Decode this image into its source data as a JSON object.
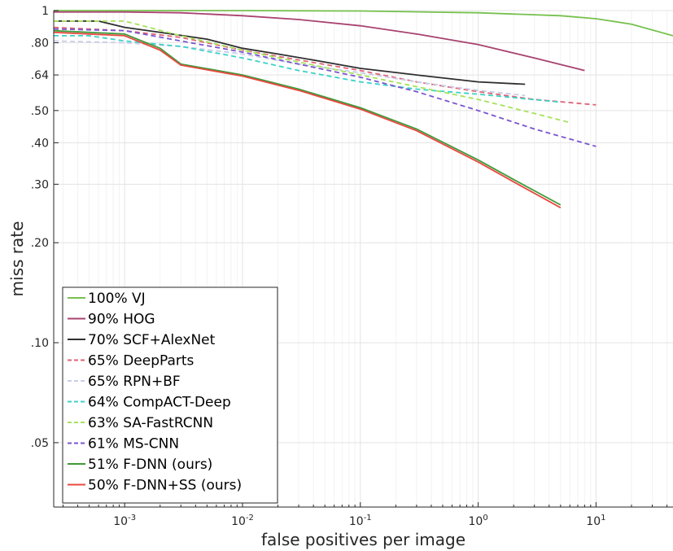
{
  "chart_data": {
    "type": "line",
    "xlabel": "false positives per image",
    "ylabel": "miss rate",
    "x_scale": "log",
    "y_scale": "log",
    "xlim": [
      0.00025,
      45
    ],
    "ylim": [
      0.032,
      1
    ],
    "grid": true,
    "legend_position": "bottom-left",
    "x_ticks": [
      {
        "value": 0.001,
        "base": "10",
        "exp": "-3"
      },
      {
        "value": 0.01,
        "base": "10",
        "exp": "-2"
      },
      {
        "value": 0.1,
        "base": "10",
        "exp": "-1"
      },
      {
        "value": 1,
        "base": "10",
        "exp": "0"
      },
      {
        "value": 10,
        "base": "10",
        "exp": "1"
      }
    ],
    "y_ticks": [
      {
        "value": 1,
        "label": "1"
      },
      {
        "value": 0.8,
        "label": ".80"
      },
      {
        "value": 0.64,
        "label": ".64"
      },
      {
        "value": 0.5,
        "label": ".50"
      },
      {
        "value": 0.4,
        "label": ".40"
      },
      {
        "value": 0.3,
        "label": ".30"
      },
      {
        "value": 0.2,
        "label": ".20"
      },
      {
        "value": 0.1,
        "label": ".10"
      },
      {
        "value": 0.05,
        "label": ".05"
      }
    ],
    "series": [
      {
        "name": "100% VJ",
        "color": "#77c14f",
        "dash": "solid",
        "x": [
          0.00025,
          0.001,
          0.01,
          0.1,
          1,
          5,
          10,
          20,
          45
        ],
        "y": [
          1.0,
          1.0,
          1.0,
          0.997,
          0.985,
          0.965,
          0.945,
          0.91,
          0.84
        ]
      },
      {
        "name": "90% HOG",
        "color": "#a8426f",
        "dash": "solid",
        "x": [
          0.00025,
          0.001,
          0.003,
          0.01,
          0.03,
          0.1,
          0.3,
          1,
          3,
          8
        ],
        "y": [
          0.99,
          0.99,
          0.985,
          0.965,
          0.94,
          0.9,
          0.85,
          0.79,
          0.72,
          0.66
        ]
      },
      {
        "name": "70% SCF+AlexNet",
        "color": "#2f2f2f",
        "dash": "solid",
        "x": [
          0.00025,
          0.0006,
          0.001,
          0.002,
          0.005,
          0.01,
          0.02,
          0.05,
          0.1,
          0.3,
          1,
          2.5
        ],
        "y": [
          0.93,
          0.93,
          0.89,
          0.86,
          0.82,
          0.77,
          0.74,
          0.7,
          0.67,
          0.64,
          0.61,
          0.6
        ]
      },
      {
        "name": "65% DeepParts",
        "color": "#e06377",
        "dash": "dashed",
        "x": [
          0.00025,
          0.001,
          0.003,
          0.01,
          0.03,
          0.1,
          0.3,
          1,
          3,
          10
        ],
        "y": [
          0.89,
          0.87,
          0.83,
          0.76,
          0.71,
          0.66,
          0.61,
          0.57,
          0.54,
          0.52
        ]
      },
      {
        "name": "65% RPN+BF",
        "color": "#c8cde8",
        "dash": "dashed",
        "x": [
          0.00025,
          0.001,
          0.003,
          0.01,
          0.03,
          0.1,
          0.3,
          1,
          2.5
        ],
        "y": [
          0.81,
          0.8,
          0.78,
          0.74,
          0.69,
          0.65,
          0.61,
          0.575,
          0.555
        ]
      },
      {
        "name": "64% CompACT-Deep",
        "color": "#3cd2c8",
        "dash": "dashed",
        "x": [
          0.00025,
          0.0005,
          0.001,
          0.003,
          0.01,
          0.03,
          0.1,
          0.3,
          1,
          5
        ],
        "y": [
          0.84,
          0.84,
          0.81,
          0.78,
          0.72,
          0.66,
          0.61,
          0.58,
          0.56,
          0.53
        ]
      },
      {
        "name": "63% SA-FastRCNN",
        "color": "#a6e35a",
        "dash": "dashed",
        "x": [
          0.00025,
          0.001,
          0.003,
          0.01,
          0.03,
          0.1,
          0.3,
          1,
          3,
          6
        ],
        "y": [
          0.93,
          0.93,
          0.84,
          0.76,
          0.7,
          0.64,
          0.59,
          0.54,
          0.49,
          0.46
        ]
      },
      {
        "name": "61% MS-CNN",
        "color": "#7a55cf",
        "dash": "dashed",
        "x": [
          0.00025,
          0.001,
          0.003,
          0.01,
          0.03,
          0.1,
          0.3,
          1,
          3,
          10
        ],
        "y": [
          0.88,
          0.87,
          0.81,
          0.75,
          0.69,
          0.63,
          0.57,
          0.5,
          0.44,
          0.39
        ]
      },
      {
        "name": "51% F-DNN (ours)",
        "color": "#3f9a3a",
        "dash": "solid",
        "x": [
          0.00025,
          0.001,
          0.002,
          0.003,
          0.01,
          0.03,
          0.1,
          0.3,
          1,
          2,
          5
        ],
        "y": [
          0.87,
          0.85,
          0.77,
          0.69,
          0.64,
          0.58,
          0.51,
          0.44,
          0.355,
          0.31,
          0.26
        ]
      },
      {
        "name": "50% F-DNN+SS (ours)",
        "color": "#e8483f",
        "dash": "solid",
        "x": [
          0.00025,
          0.001,
          0.002,
          0.003,
          0.01,
          0.03,
          0.1,
          0.3,
          1,
          2,
          5
        ],
        "y": [
          0.86,
          0.84,
          0.76,
          0.685,
          0.635,
          0.575,
          0.505,
          0.435,
          0.35,
          0.305,
          0.255
        ]
      }
    ]
  }
}
